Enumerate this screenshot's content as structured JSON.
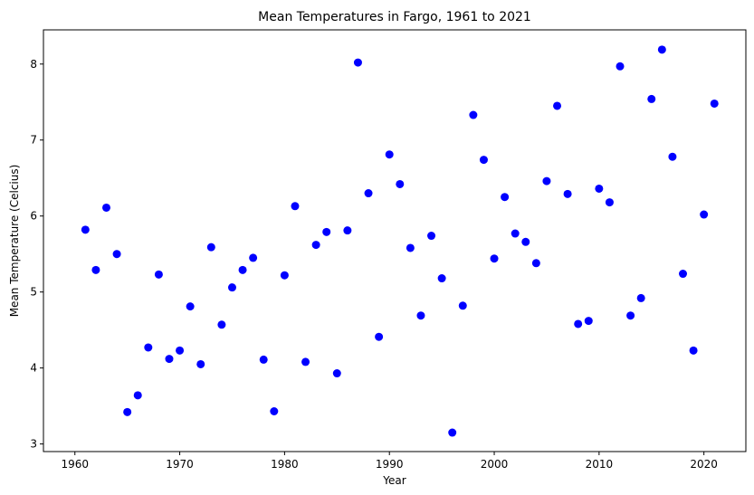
{
  "chart_data": {
    "type": "scatter",
    "title": "Mean Temperatures in Fargo, 1961 to 2021",
    "xlabel": "Year",
    "ylabel": "Mean Temperature (Celcius)",
    "xlim": [
      1957.0,
      2024.0
    ],
    "ylim": [
      2.9,
      8.45
    ],
    "xticks": [
      1960,
      1970,
      1980,
      1990,
      2000,
      2010,
      2020
    ],
    "yticks": [
      3,
      4,
      5,
      6,
      7,
      8
    ],
    "grid": false,
    "marker_color": "#0000ff",
    "series": [
      {
        "x": [
          1961,
          1962,
          1963,
          1964,
          1965,
          1966,
          1967,
          1968,
          1969,
          1970,
          1971,
          1972,
          1973,
          1974,
          1975,
          1976,
          1977,
          1978,
          1979,
          1980,
          1981,
          1982,
          1983,
          1984,
          1985,
          1986,
          1987,
          1988,
          1989,
          1990,
          1991,
          1992,
          1993,
          1994,
          1995,
          1996,
          1997,
          1998,
          1999,
          2000,
          2001,
          2002,
          2003,
          2004,
          2005,
          2006,
          2007,
          2008,
          2009,
          2010,
          2011,
          2012,
          2013,
          2014,
          2015,
          2016,
          2017,
          2018,
          2019,
          2020,
          2021
        ],
        "y": [
          5.82,
          5.29,
          6.11,
          5.5,
          3.42,
          3.64,
          4.27,
          5.23,
          4.12,
          4.23,
          4.81,
          4.05,
          5.59,
          4.57,
          5.06,
          5.29,
          5.45,
          4.11,
          3.43,
          5.22,
          6.13,
          4.08,
          5.62,
          5.79,
          3.93,
          5.81,
          8.02,
          6.3,
          4.41,
          6.81,
          6.42,
          5.58,
          4.69,
          5.74,
          5.18,
          3.15,
          4.82,
          7.33,
          6.74,
          5.44,
          6.25,
          5.77,
          5.66,
          5.38,
          6.46,
          7.45,
          6.29,
          4.58,
          4.62,
          6.36,
          6.18,
          7.97,
          4.69,
          4.92,
          7.54,
          8.19,
          6.78,
          5.24,
          4.23,
          6.02,
          7.48
        ]
      }
    ]
  }
}
